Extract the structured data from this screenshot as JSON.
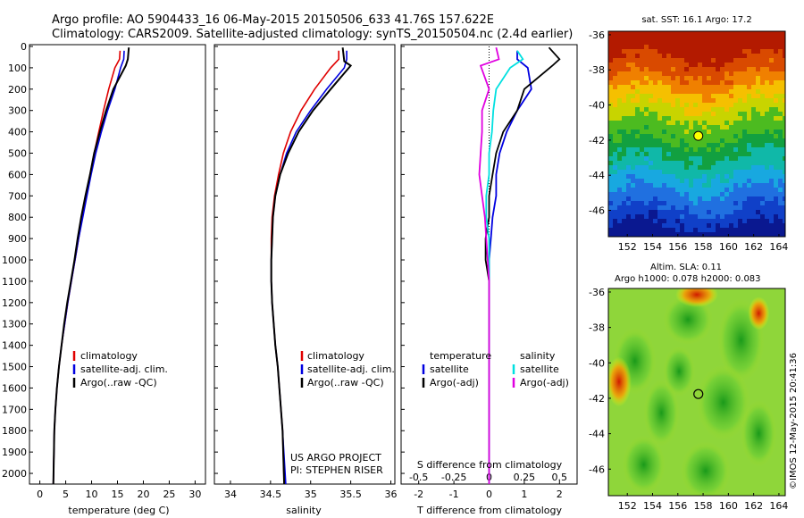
{
  "title_line1": "Argo profile: AO 5904433_16 06-May-2015 20150506_633 41.76S 157.622E",
  "title_line2": "Climatology: CARS2009. Satellite-adjusted climatology: synTS_20150504.nc (2.4d earlier)",
  "sst_title": "sat. SST: 16.1  Argo: 17.2",
  "sla_title1": "Altim. SLA: 0.11",
  "sla_title2": "Argo h1000: 0.078 h2000: 0.083",
  "side_stamp": "©IMOS 12-May-2015 20:41:36",
  "project_line1": "US ARGO PROJECT",
  "project_line2": "PI: STEPHEN RISER",
  "colors": {
    "climatology": "#e00000",
    "satellite": "#0000e0",
    "argo": "#000000",
    "sal_sat": "#00e0e0",
    "sal_argo": "#e000e0"
  },
  "temp_panel": {
    "xlabel": "temperature (deg C)",
    "xticks": [
      "0",
      "5",
      "10",
      "15",
      "20",
      "25",
      "30"
    ],
    "yticks": [
      "0",
      "100",
      "200",
      "300",
      "400",
      "500",
      "600",
      "700",
      "800",
      "900",
      "1000",
      "1100",
      "1200",
      "1300",
      "1400",
      "1500",
      "1600",
      "1700",
      "1800",
      "1900",
      "2000"
    ],
    "legend": [
      "climatology",
      "satellite-adj. clim.",
      "Argo(..raw -QC)"
    ]
  },
  "sal_panel": {
    "xlabel": "salinity",
    "xticks": [
      "34",
      "34.5",
      "35",
      "35.5",
      "36"
    ],
    "legend": [
      "climatology",
      "satellite-adj. clim.",
      "Argo(..raw -QC)"
    ]
  },
  "diff_panel": {
    "xlabel": "T difference from climatology",
    "s_label": "S difference from climatology",
    "s_ticks": [
      "-0.5",
      "-0.25",
      "0",
      "0.25",
      "0.5"
    ],
    "t_ticks": [
      "-2",
      "-1",
      "0",
      "1",
      "2"
    ],
    "legend_temp_head": "temperature",
    "legend_sal_head": "salinity",
    "legend_temp": [
      "satellite",
      "Argo(-adj)"
    ],
    "legend_sal": [
      "satellite",
      "Argo(-adj)"
    ]
  },
  "map_xticks": [
    "152",
    "154",
    "156",
    "158",
    "160",
    "162",
    "164"
  ],
  "map_yticks": [
    "-36",
    "-38",
    "-40",
    "-42",
    "-44",
    "-46"
  ],
  "chart_data": [
    {
      "type": "line",
      "title": "",
      "xlabel": "temperature (deg C)",
      "ylabel": "",
      "xlim": [
        -2,
        32
      ],
      "ylim": [
        2050,
        0
      ],
      "series": [
        {
          "name": "climatology",
          "x": [
            15.5,
            15.4,
            14.5,
            13.3,
            12.3,
            11.4,
            10.5,
            9.7,
            8.9,
            8.2,
            7.5,
            6.8,
            6.1,
            5.4,
            4.8,
            4.2,
            3.7,
            3.3,
            3.0,
            2.8,
            2.6
          ],
          "y": [
            20,
            60,
            100,
            200,
            300,
            400,
            500,
            600,
            700,
            800,
            900,
            1000,
            1100,
            1200,
            1300,
            1400,
            1500,
            1600,
            1700,
            1800,
            2050
          ]
        },
        {
          "name": "satellite-adj. clim.",
          "x": [
            16.3,
            16.2,
            15.6,
            14.5,
            13.1,
            11.9,
            10.8,
            9.9,
            9.1,
            8.3,
            7.5,
            6.8,
            6.1,
            5.4,
            4.8,
            4.2,
            3.7,
            3.3,
            3.0,
            2.8,
            2.6
          ],
          "y": [
            20,
            60,
            100,
            200,
            300,
            400,
            500,
            600,
            700,
            800,
            900,
            1000,
            1100,
            1200,
            1300,
            1400,
            1500,
            1600,
            1700,
            1800,
            2050
          ]
        },
        {
          "name": "Argo(..raw -QC)",
          "x": [
            17.2,
            17.0,
            16.6,
            14.2,
            12.8,
            11.6,
            10.5,
            9.7,
            8.8,
            8.0,
            7.3,
            6.7,
            6.0,
            5.3,
            4.7,
            4.2,
            3.7,
            3.3,
            3.0,
            2.8,
            2.6
          ],
          "y": [
            5,
            60,
            90,
            200,
            300,
            400,
            500,
            600,
            700,
            800,
            900,
            1000,
            1100,
            1200,
            1300,
            1400,
            1500,
            1600,
            1700,
            1800,
            2050
          ]
        }
      ]
    },
    {
      "type": "line",
      "title": "",
      "xlabel": "salinity",
      "ylabel": "",
      "xlim": [
        33.8,
        36.05
      ],
      "ylim": [
        2050,
        0
      ],
      "series": [
        {
          "name": "climatology",
          "x": [
            35.35,
            35.35,
            35.25,
            35.05,
            34.88,
            34.75,
            34.66,
            34.6,
            34.55,
            34.52,
            34.51,
            34.51,
            34.51,
            34.52,
            34.54,
            34.56,
            34.59,
            34.61,
            34.63,
            34.65,
            34.67
          ],
          "y": [
            20,
            60,
            100,
            200,
            300,
            400,
            500,
            600,
            700,
            800,
            900,
            1000,
            1100,
            1200,
            1300,
            1400,
            1500,
            1600,
            1700,
            1800,
            2050
          ]
        },
        {
          "name": "satellite-adj. clim.",
          "x": [
            35.45,
            35.45,
            35.42,
            35.2,
            35.0,
            34.82,
            34.7,
            34.62,
            34.56,
            34.53,
            34.52,
            34.51,
            34.51,
            34.52,
            34.54,
            34.56,
            34.59,
            34.61,
            34.63,
            34.65,
            34.69
          ],
          "y": [
            20,
            60,
            100,
            200,
            300,
            400,
            500,
            600,
            700,
            800,
            900,
            1000,
            1100,
            1200,
            1300,
            1400,
            1500,
            1600,
            1700,
            1800,
            2050
          ]
        },
        {
          "name": "Argo(..raw -QC)",
          "x": [
            35.4,
            35.42,
            35.5,
            35.25,
            35.03,
            34.85,
            34.72,
            34.62,
            34.56,
            34.53,
            34.52,
            34.51,
            34.51,
            34.52,
            34.54,
            34.56,
            34.59,
            34.61,
            34.63,
            34.65,
            34.67
          ],
          "y": [
            5,
            70,
            90,
            200,
            300,
            400,
            500,
            600,
            700,
            800,
            900,
            1000,
            1100,
            1200,
            1300,
            1400,
            1500,
            1600,
            1700,
            1800,
            2050
          ]
        }
      ]
    },
    {
      "type": "line",
      "title": "",
      "xlabel": "T difference from climatology",
      "ylabel": "",
      "xlim": [
        -2.5,
        2.5
      ],
      "ylim": [
        2050,
        0
      ],
      "series": [
        {
          "name": "temperature satellite",
          "x": [
            0.8,
            0.8,
            1.1,
            1.2,
            0.8,
            0.5,
            0.3,
            0.2,
            0.2,
            0.1,
            0.05,
            0.0,
            0.0,
            0.0,
            0.0,
            0.0,
            0.0,
            0.0,
            0.0,
            0.0,
            0.0
          ],
          "y": [
            20,
            60,
            100,
            200,
            300,
            400,
            500,
            600,
            700,
            800,
            900,
            1000,
            1100,
            1200,
            1300,
            1400,
            1500,
            1600,
            1700,
            1800,
            2050
          ]
        },
        {
          "name": "temperature Argo(-adj)",
          "x": [
            1.7,
            2.0,
            1.8,
            1.0,
            0.8,
            0.4,
            0.2,
            0.1,
            0.0,
            0.0,
            -0.1,
            -0.1,
            0.0,
            0.0,
            0.0,
            0.0,
            0.0,
            0.0,
            0.0,
            0.0,
            0.0
          ],
          "y": [
            5,
            60,
            90,
            200,
            300,
            400,
            500,
            600,
            700,
            800,
            900,
            1000,
            1100,
            1200,
            1300,
            1400,
            1500,
            1600,
            1700,
            1800,
            2050
          ]
        },
        {
          "name": "salinity satellite",
          "x": [
            0.2,
            0.24,
            0.15,
            0.05,
            0.03,
            0.02,
            0.0,
            0.0,
            -0.02,
            -0.02,
            0.0,
            0.0,
            0.0,
            0.0,
            0.0,
            0.0,
            0.0,
            0.0,
            0.0,
            0.0,
            0.0
          ],
          "y": [
            20,
            60,
            100,
            200,
            300,
            400,
            500,
            600,
            700,
            800,
            900,
            1000,
            1100,
            1200,
            1300,
            1400,
            1500,
            1600,
            1700,
            1800,
            2050
          ]
        },
        {
          "name": "salinity Argo(-adj)",
          "x": [
            0.05,
            0.07,
            -0.06,
            0.0,
            -0.05,
            -0.05,
            -0.06,
            -0.07,
            -0.05,
            -0.03,
            -0.02,
            -0.01,
            0.0,
            0.0,
            0.0,
            0.0,
            0.0,
            0.0,
            0.0,
            0.0,
            0.0
          ],
          "y": [
            5,
            60,
            90,
            200,
            300,
            400,
            500,
            600,
            700,
            800,
            900,
            1000,
            1100,
            1200,
            1300,
            1400,
            1500,
            1600,
            1700,
            1800,
            2050
          ]
        }
      ]
    },
    {
      "type": "heatmap",
      "title": "sat. SST: 16.1  Argo: 17.2",
      "xlim": [
        150.5,
        164.5
      ],
      "ylim": [
        -47.5,
        -35.8
      ],
      "marker": {
        "lon": 157.622,
        "lat": -41.76
      }
    },
    {
      "type": "heatmap",
      "title": "Altim. SLA: 0.11",
      "xlim": [
        150.5,
        164.5
      ],
      "ylim": [
        -47.5,
        -35.8
      ],
      "marker": {
        "lon": 157.622,
        "lat": -41.76
      }
    }
  ]
}
